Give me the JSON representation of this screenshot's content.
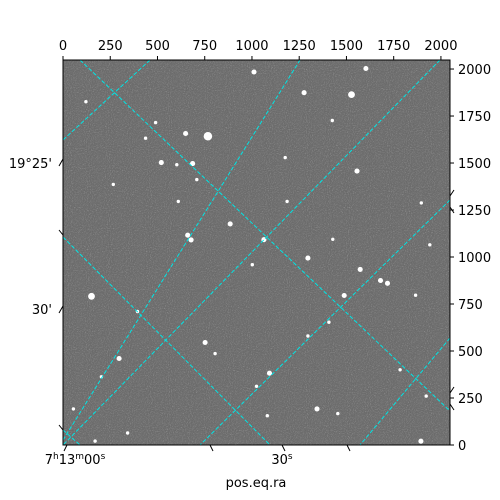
{
  "chart_data": {
    "type": "image",
    "xlabel": "pos.eq.ra",
    "ylabel": "",
    "pixel_axes": {
      "x_ticks": [
        0,
        250,
        500,
        750,
        1000,
        1250,
        1500,
        1750,
        2000
      ],
      "x_tick_labels": [
        "0",
        "250",
        "500",
        "750",
        "1000",
        "1250",
        "1500",
        "1750",
        "2000"
      ],
      "y_ticks": [
        0,
        250,
        500,
        750,
        1000,
        1250,
        1500,
        1750,
        2000
      ],
      "y_tick_labels": [
        "0",
        "250",
        "500",
        "750",
        "1000",
        "1250",
        "1500",
        "1750",
        "2000"
      ],
      "xlim": [
        0,
        2048
      ],
      "ylim": [
        0,
        2048
      ]
    },
    "world_axes": {
      "ra_labels": [
        "7h13m00s",
        "30s"
      ],
      "dec_labels": [
        "19°25'",
        "30'"
      ]
    },
    "grid_color": "#00e5e5",
    "grid_style": "dashed",
    "image_colormap": "gray",
    "background_color": "#6e6e6e",
    "stars": [
      [
        1011,
        1984,
        3
      ],
      [
        1603,
        2003,
        3
      ],
      [
        1527,
        1864,
        4
      ],
      [
        1276,
        1874,
        3
      ],
      [
        767,
        1642,
        5
      ],
      [
        649,
        1657,
        3
      ],
      [
        490,
        1715,
        2
      ],
      [
        121,
        1826,
        2
      ],
      [
        1556,
        1457,
        3
      ],
      [
        520,
        1502,
        3
      ],
      [
        602,
        1491,
        2
      ],
      [
        686,
        1497,
        3
      ],
      [
        1176,
        1529,
        2
      ],
      [
        708,
        1412,
        2
      ],
      [
        266,
        1386,
        2
      ],
      [
        660,
        1116,
        3
      ],
      [
        678,
        1091,
        3
      ],
      [
        885,
        1176,
        3
      ],
      [
        1063,
        1092,
        3
      ],
      [
        1428,
        1094,
        2
      ],
      [
        1296,
        994,
        3
      ],
      [
        1002,
        959,
        2
      ],
      [
        1680,
        875,
        3
      ],
      [
        1717,
        860,
        3
      ],
      [
        1488,
        795,
        3
      ],
      [
        1866,
        797,
        2
      ],
      [
        151,
        791,
        4
      ],
      [
        394,
        710,
        2
      ],
      [
        1407,
        653,
        2
      ],
      [
        1296,
        580,
        2
      ],
      [
        752,
        545,
        3
      ],
      [
        805,
        486,
        2
      ],
      [
        297,
        460,
        3
      ],
      [
        203,
        363,
        2
      ],
      [
        1093,
        382,
        3
      ],
      [
        1024,
        312,
        2
      ],
      [
        55,
        192,
        2
      ],
      [
        1344,
        192,
        3
      ],
      [
        1454,
        167,
        2
      ],
      [
        1081,
        156,
        2
      ],
      [
        1894,
        20,
        3
      ],
      [
        170,
        21,
        2
      ],
      [
        342,
        64,
        2
      ],
      [
        1941,
        1065,
        2
      ],
      [
        1573,
        934,
        3
      ],
      [
        1186,
        1296,
        2
      ],
      [
        1896,
        1288,
        2
      ],
      [
        1784,
        400,
        2
      ],
      [
        1922,
        260,
        2
      ],
      [
        610,
        1296,
        2
      ],
      [
        1425,
        1726,
        2
      ],
      [
        437,
        1632,
        2
      ]
    ]
  }
}
